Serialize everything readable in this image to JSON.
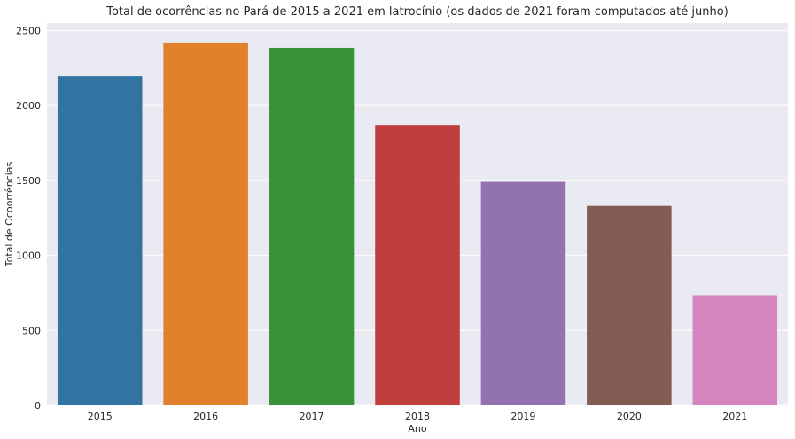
{
  "chart_data": {
    "type": "bar",
    "title": "Total de ocorrências no Pará de 2015 a 2021 em latrocínio (os dados de 2021 foram computados até junho)",
    "xlabel": "Ano",
    "ylabel": "Total de Ocoorrências",
    "categories": [
      "2015",
      "2016",
      "2017",
      "2018",
      "2019",
      "2020",
      "2021"
    ],
    "values": [
      2195,
      2415,
      2385,
      1870,
      1490,
      1330,
      735
    ],
    "ylim": [
      0,
      2550
    ],
    "yticks": [
      0,
      500,
      1000,
      1500,
      2000,
      2500
    ],
    "grid": true,
    "legend": "none",
    "colors": [
      "#3274a1",
      "#e1812c",
      "#3a923a",
      "#c03d3e",
      "#9372b2",
      "#845b53",
      "#d684bd"
    ],
    "background": "#eaeaf2"
  }
}
